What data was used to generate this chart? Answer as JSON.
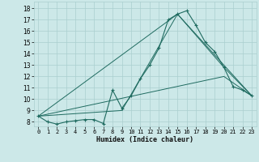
{
  "xlabel": "Humidex (Indice chaleur)",
  "bg_color": "#cce8e8",
  "grid_color": "#aacfcf",
  "line_color": "#1f6b60",
  "xlim": [
    -0.5,
    23.5
  ],
  "ylim": [
    7.6,
    18.6
  ],
  "xticks": [
    0,
    1,
    2,
    3,
    4,
    5,
    6,
    7,
    8,
    9,
    10,
    11,
    12,
    13,
    14,
    15,
    16,
    17,
    18,
    19,
    20,
    21,
    22,
    23
  ],
  "yticks": [
    8,
    9,
    10,
    11,
    12,
    13,
    14,
    15,
    16,
    17,
    18
  ],
  "line1_x": [
    0,
    1,
    2,
    3,
    4,
    5,
    6,
    7,
    8,
    9,
    10,
    11,
    12,
    13,
    14,
    15,
    16,
    17,
    18,
    19,
    20,
    21,
    22,
    23
  ],
  "line1_y": [
    8.5,
    8.0,
    7.8,
    8.0,
    8.1,
    8.2,
    8.2,
    7.85,
    10.8,
    9.2,
    10.3,
    11.8,
    13.0,
    14.5,
    17.0,
    17.5,
    17.8,
    16.5,
    15.0,
    14.2,
    12.8,
    11.1,
    10.8,
    10.3
  ],
  "line2_x": [
    0,
    9,
    15,
    20,
    23
  ],
  "line2_y": [
    8.5,
    9.0,
    17.5,
    12.8,
    10.3
  ],
  "line3_x": [
    0,
    15,
    23
  ],
  "line3_y": [
    8.5,
    17.5,
    10.3
  ],
  "line4_x": [
    0,
    20,
    23
  ],
  "line4_y": [
    8.5,
    12.0,
    10.3
  ]
}
